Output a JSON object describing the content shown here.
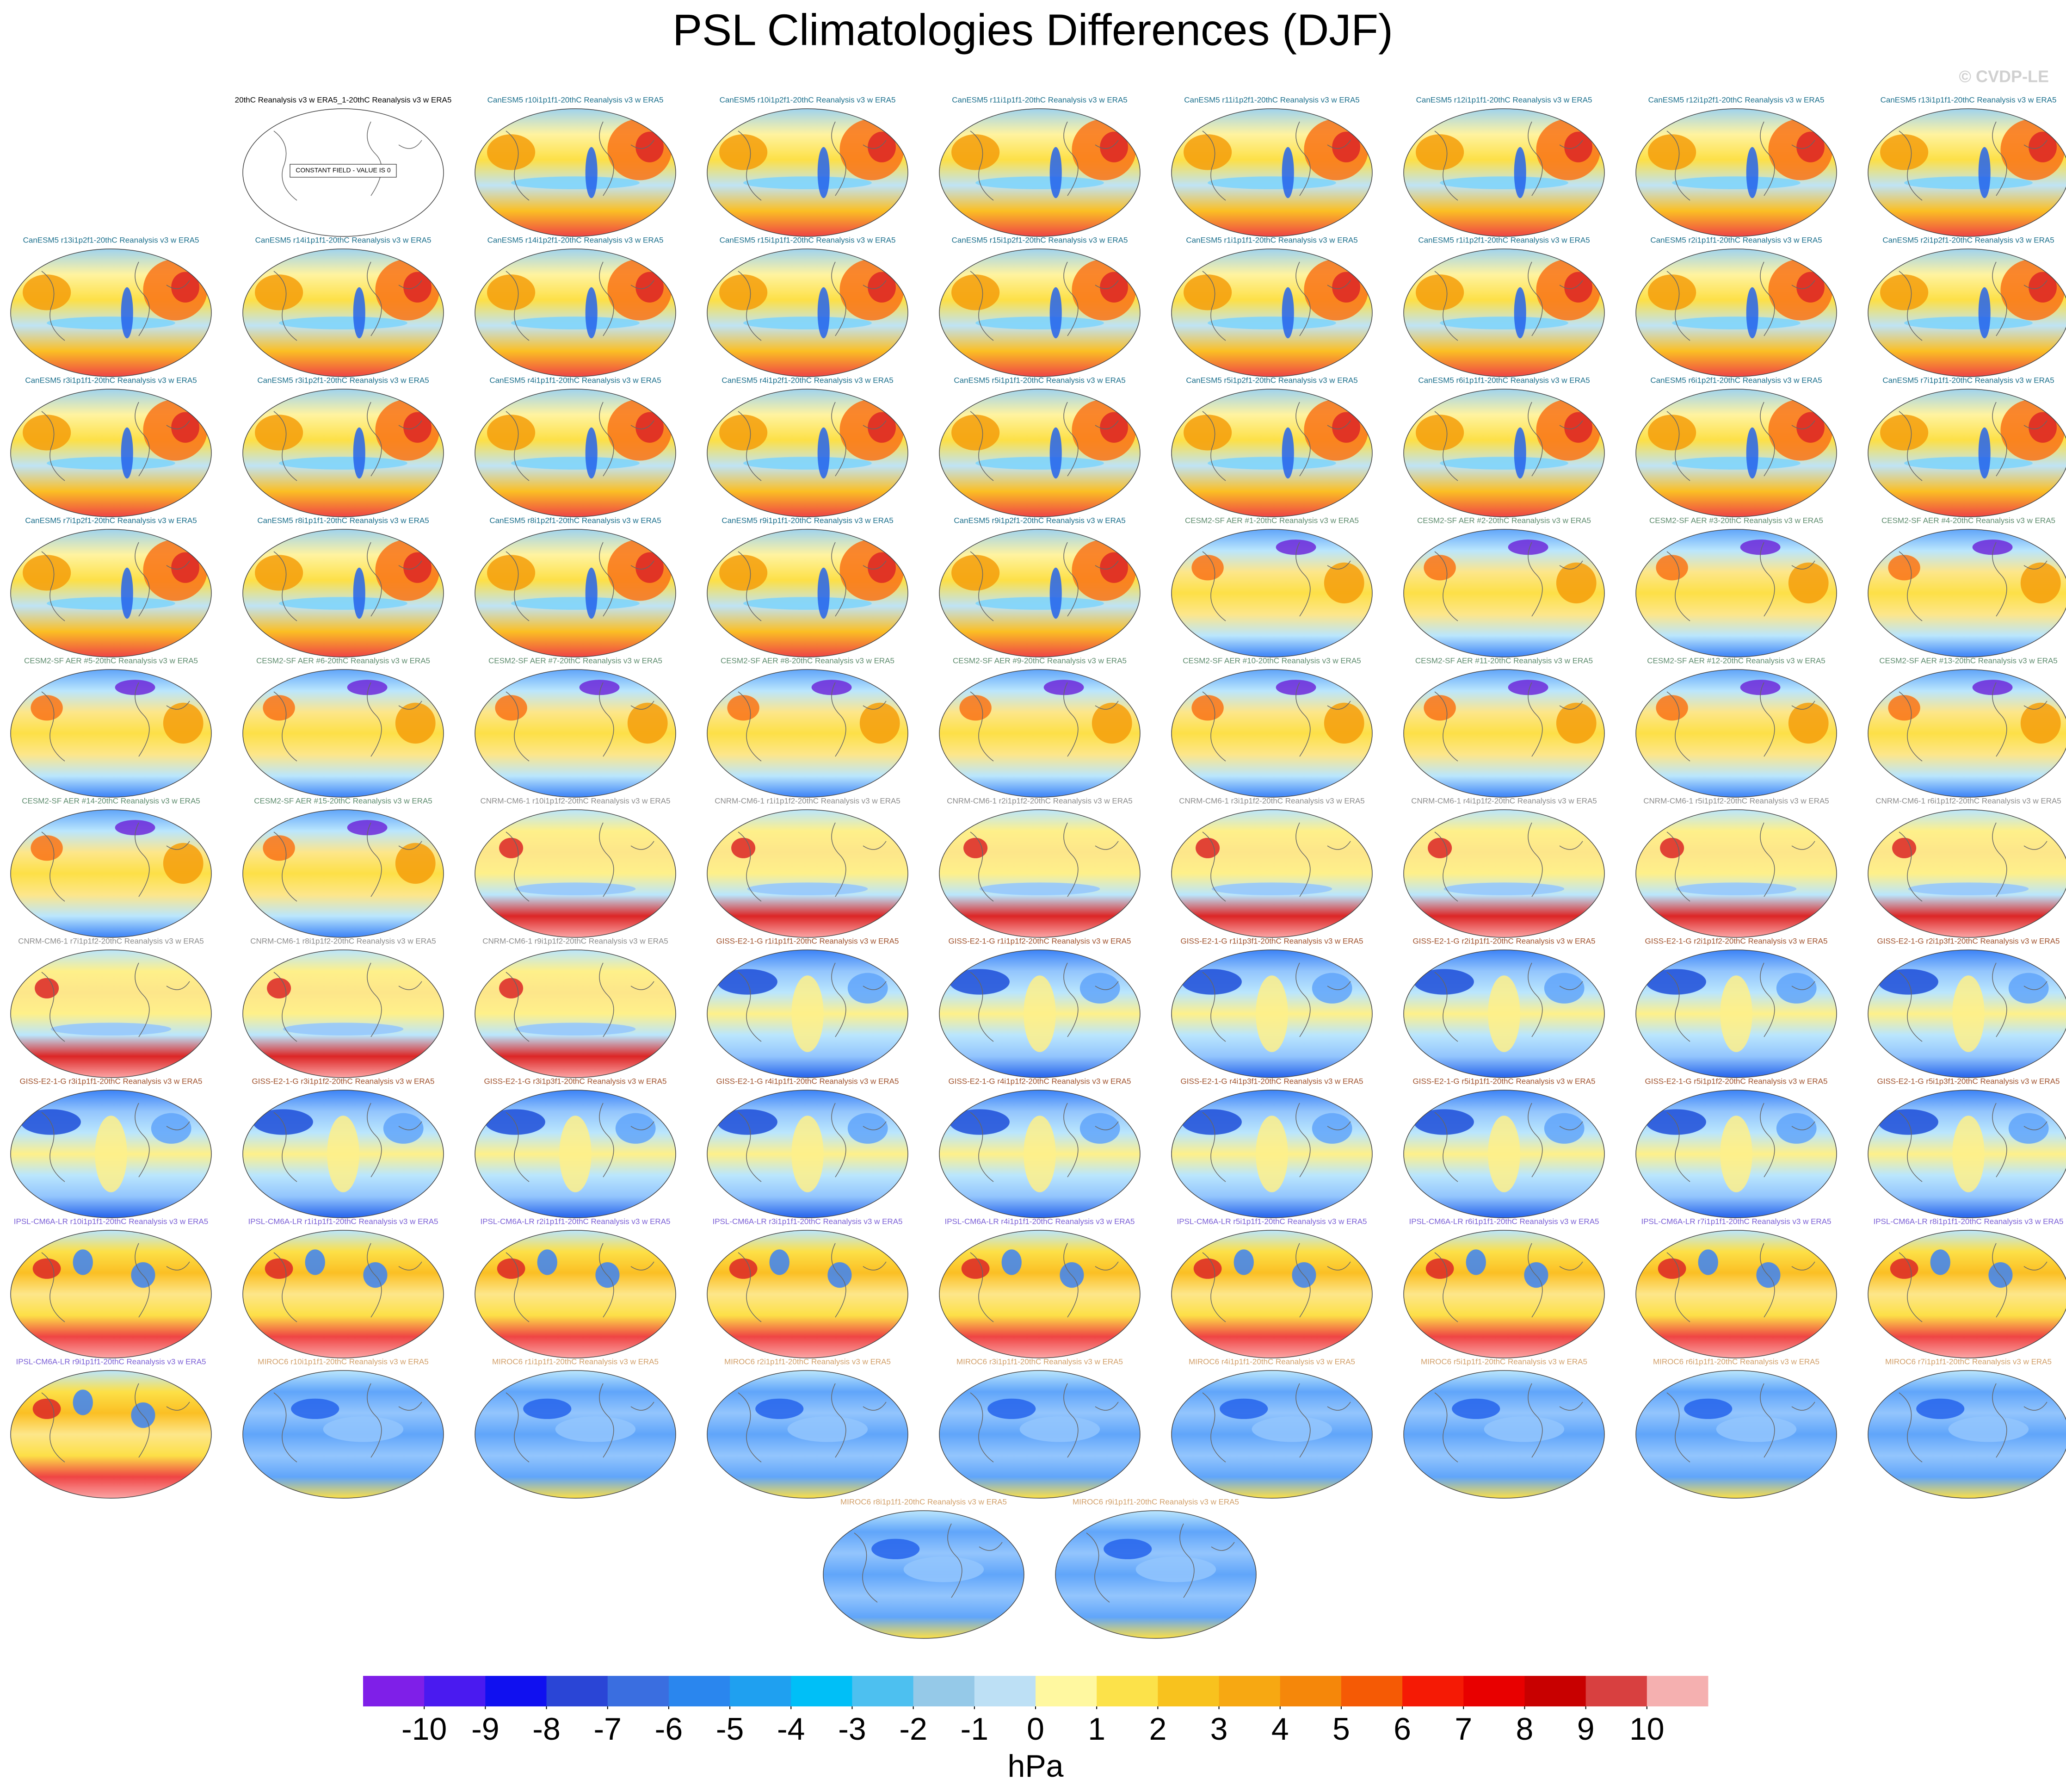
{
  "title": "PSL Climatologies Differences (DJF)",
  "watermark": "© CVDP-LE",
  "panels": [
    {
      "label": "20thC Reanalysis v3 w ERA5_1-20thC Reanalysis v3 w ERA5",
      "color": "#000000",
      "note": "CONSTANT FIELD - VALUE IS 0"
    },
    {
      "label": "CanESM5 r10i1p1f1-20thC Reanalysis v3 w ERA5",
      "color": "#1b6f8c"
    },
    {
      "label": "CanESM5 r10i1p2f1-20thC Reanalysis v3 w ERA5",
      "color": "#1b6f8c"
    },
    {
      "label": "CanESM5 r11i1p1f1-20thC Reanalysis v3 w ERA5",
      "color": "#1b6f8c"
    },
    {
      "label": "CanESM5 r11i1p2f1-20thC Reanalysis v3 w ERA5",
      "color": "#1b6f8c"
    },
    {
      "label": "CanESM5 r12i1p1f1-20thC Reanalysis v3 w ERA5",
      "color": "#1b6f8c"
    },
    {
      "label": "CanESM5 r12i1p2f1-20thC Reanalysis v3 w ERA5",
      "color": "#1b6f8c"
    },
    {
      "label": "CanESM5 r13i1p1f1-20thC Reanalysis v3 w ERA5",
      "color": "#1b6f8c"
    },
    {
      "label": "CanESM5 r13i1p2f1-20thC Reanalysis v3 w ERA5",
      "color": "#1b6f8c"
    },
    {
      "label": "CanESM5 r14i1p1f1-20thC Reanalysis v3 w ERA5",
      "color": "#1b6f8c"
    },
    {
      "label": "CanESM5 r14i1p2f1-20thC Reanalysis v3 w ERA5",
      "color": "#1b6f8c"
    },
    {
      "label": "CanESM5 r15i1p1f1-20thC Reanalysis v3 w ERA5",
      "color": "#1b6f8c"
    },
    {
      "label": "CanESM5 r15i1p2f1-20thC Reanalysis v3 w ERA5",
      "color": "#1b6f8c"
    },
    {
      "label": "CanESM5 r1i1p1f1-20thC Reanalysis v3 w ERA5",
      "color": "#1b6f8c"
    },
    {
      "label": "CanESM5 r1i1p2f1-20thC Reanalysis v3 w ERA5",
      "color": "#1b6f8c"
    },
    {
      "label": "CanESM5 r2i1p1f1-20thC Reanalysis v3 w ERA5",
      "color": "#1b6f8c"
    },
    {
      "label": "CanESM5 r2i1p2f1-20thC Reanalysis v3 w ERA5",
      "color": "#1b6f8c"
    },
    {
      "label": "CanESM5 r3i1p1f1-20thC Reanalysis v3 w ERA5",
      "color": "#1b6f8c"
    },
    {
      "label": "CanESM5 r3i1p2f1-20thC Reanalysis v3 w ERA5",
      "color": "#1b6f8c"
    },
    {
      "label": "CanESM5 r4i1p1f1-20thC Reanalysis v3 w ERA5",
      "color": "#1b6f8c"
    },
    {
      "label": "CanESM5 r4i1p2f1-20thC Reanalysis v3 w ERA5",
      "color": "#1b6f8c"
    },
    {
      "label": "CanESM5 r5i1p1f1-20thC Reanalysis v3 w ERA5",
      "color": "#1b6f8c"
    },
    {
      "label": "CanESM5 r5i1p2f1-20thC Reanalysis v3 w ERA5",
      "color": "#1b6f8c"
    },
    {
      "label": "CanESM5 r6i1p1f1-20thC Reanalysis v3 w ERA5",
      "color": "#1b6f8c"
    },
    {
      "label": "CanESM5 r6i1p2f1-20thC Reanalysis v3 w ERA5",
      "color": "#1b6f8c"
    },
    {
      "label": "CanESM5 r7i1p1f1-20thC Reanalysis v3 w ERA5",
      "color": "#1b6f8c"
    },
    {
      "label": "CanESM5 r7i1p2f1-20thC Reanalysis v3 w ERA5",
      "color": "#1b6f8c"
    },
    {
      "label": "CanESM5 r8i1p1f1-20thC Reanalysis v3 w ERA5",
      "color": "#1b6f8c"
    },
    {
      "label": "CanESM5 r8i1p2f1-20thC Reanalysis v3 w ERA5",
      "color": "#1b6f8c"
    },
    {
      "label": "CanESM5 r9i1p1f1-20thC Reanalysis v3 w ERA5",
      "color": "#1b6f8c"
    },
    {
      "label": "CanESM5 r9i1p2f1-20thC Reanalysis v3 w ERA5",
      "color": "#1b6f8c"
    },
    {
      "label": "CESM2-SF AER #1-20thC Reanalysis v3 w ERA5",
      "color": "#5e8c6e"
    },
    {
      "label": "CESM2-SF AER #2-20thC Reanalysis v3 w ERA5",
      "color": "#5e8c6e"
    },
    {
      "label": "CESM2-SF AER #3-20thC Reanalysis v3 w ERA5",
      "color": "#5e8c6e"
    },
    {
      "label": "CESM2-SF AER #4-20thC Reanalysis v3 w ERA5",
      "color": "#5e8c6e"
    },
    {
      "label": "CESM2-SF AER #5-20thC Reanalysis v3 w ERA5",
      "color": "#5e8c6e"
    },
    {
      "label": "CESM2-SF AER #6-20thC Reanalysis v3 w ERA5",
      "color": "#5e8c6e"
    },
    {
      "label": "CESM2-SF AER #7-20thC Reanalysis v3 w ERA5",
      "color": "#5e8c6e"
    },
    {
      "label": "CESM2-SF AER #8-20thC Reanalysis v3 w ERA5",
      "color": "#5e8c6e"
    },
    {
      "label": "CESM2-SF AER #9-20thC Reanalysis v3 w ERA5",
      "color": "#5e8c6e"
    },
    {
      "label": "CESM2-SF AER #10-20thC Reanalysis v3 w ERA5",
      "color": "#5e8c6e"
    },
    {
      "label": "CESM2-SF AER #11-20thC Reanalysis v3 w ERA5",
      "color": "#5e8c6e"
    },
    {
      "label": "CESM2-SF AER #12-20thC Reanalysis v3 w ERA5",
      "color": "#5e8c6e"
    },
    {
      "label": "CESM2-SF AER #13-20thC Reanalysis v3 w ERA5",
      "color": "#5e8c6e"
    },
    {
      "label": "CESM2-SF AER #14-20thC Reanalysis v3 w ERA5",
      "color": "#5e8c6e"
    },
    {
      "label": "CESM2-SF AER #15-20thC Reanalysis v3 w ERA5",
      "color": "#5e8c6e"
    },
    {
      "label": "CNRM-CM6-1 r10i1p1f2-20thC Reanalysis v3 w ERA5",
      "color": "#8c8c8c"
    },
    {
      "label": "CNRM-CM6-1 r1i1p1f2-20thC Reanalysis v3 w ERA5",
      "color": "#8c8c8c"
    },
    {
      "label": "CNRM-CM6-1 r2i1p1f2-20thC Reanalysis v3 w ERA5",
      "color": "#8c8c8c"
    },
    {
      "label": "CNRM-CM6-1 r3i1p1f2-20thC Reanalysis v3 w ERA5",
      "color": "#8c8c8c"
    },
    {
      "label": "CNRM-CM6-1 r4i1p1f2-20thC Reanalysis v3 w ERA5",
      "color": "#8c8c8c"
    },
    {
      "label": "CNRM-CM6-1 r5i1p1f2-20thC Reanalysis v3 w ERA5",
      "color": "#8c8c8c"
    },
    {
      "label": "CNRM-CM6-1 r6i1p1f2-20thC Reanalysis v3 w ERA5",
      "color": "#8c8c8c"
    },
    {
      "label": "CNRM-CM6-1 r7i1p1f2-20thC Reanalysis v3 w ERA5",
      "color": "#8c8c8c"
    },
    {
      "label": "CNRM-CM6-1 r8i1p1f2-20thC Reanalysis v3 w ERA5",
      "color": "#8c8c8c"
    },
    {
      "label": "CNRM-CM6-1 r9i1p1f2-20thC Reanalysis v3 w ERA5",
      "color": "#8c8c8c"
    },
    {
      "label": "GISS-E2-1-G r1i1p1f1-20thC Reanalysis v3 w ERA5",
      "color": "#a0522d"
    },
    {
      "label": "GISS-E2-1-G r1i1p1f2-20thC Reanalysis v3 w ERA5",
      "color": "#a0522d"
    },
    {
      "label": "GISS-E2-1-G r1i1p3f1-20thC Reanalysis v3 w ERA5",
      "color": "#a0522d"
    },
    {
      "label": "GISS-E2-1-G r2i1p1f1-20thC Reanalysis v3 w ERA5",
      "color": "#a0522d"
    },
    {
      "label": "GISS-E2-1-G r2i1p1f2-20thC Reanalysis v3 w ERA5",
      "color": "#a0522d"
    },
    {
      "label": "GISS-E2-1-G r2i1p3f1-20thC Reanalysis v3 w ERA5",
      "color": "#a0522d"
    },
    {
      "label": "GISS-E2-1-G r3i1p1f1-20thC Reanalysis v3 w ERA5",
      "color": "#a0522d"
    },
    {
      "label": "GISS-E2-1-G r3i1p1f2-20thC Reanalysis v3 w ERA5",
      "color": "#a0522d"
    },
    {
      "label": "GISS-E2-1-G r3i1p3f1-20thC Reanalysis v3 w ERA5",
      "color": "#a0522d"
    },
    {
      "label": "GISS-E2-1-G r4i1p1f1-20thC Reanalysis v3 w ERA5",
      "color": "#a0522d"
    },
    {
      "label": "GISS-E2-1-G r4i1p1f2-20thC Reanalysis v3 w ERA5",
      "color": "#a0522d"
    },
    {
      "label": "GISS-E2-1-G r4i1p3f1-20thC Reanalysis v3 w ERA5",
      "color": "#a0522d"
    },
    {
      "label": "GISS-E2-1-G r5i1p1f1-20thC Reanalysis v3 w ERA5",
      "color": "#a0522d"
    },
    {
      "label": "GISS-E2-1-G r5i1p1f2-20thC Reanalysis v3 w ERA5",
      "color": "#a0522d"
    },
    {
      "label": "GISS-E2-1-G r5i1p3f1-20thC Reanalysis v3 w ERA5",
      "color": "#a0522d"
    },
    {
      "label": "IPSL-CM6A-LR r10i1p1f1-20thC Reanalysis v3 w ERA5",
      "color": "#7b5fd6"
    },
    {
      "label": "IPSL-CM6A-LR r1i1p1f1-20thC Reanalysis v3 w ERA5",
      "color": "#7b5fd6"
    },
    {
      "label": "IPSL-CM6A-LR r2i1p1f1-20thC Reanalysis v3 w ERA5",
      "color": "#7b5fd6"
    },
    {
      "label": "IPSL-CM6A-LR r3i1p1f1-20thC Reanalysis v3 w ERA5",
      "color": "#7b5fd6"
    },
    {
      "label": "IPSL-CM6A-LR r4i1p1f1-20thC Reanalysis v3 w ERA5",
      "color": "#7b5fd6"
    },
    {
      "label": "IPSL-CM6A-LR r5i1p1f1-20thC Reanalysis v3 w ERA5",
      "color": "#7b5fd6"
    },
    {
      "label": "IPSL-CM6A-LR r6i1p1f1-20thC Reanalysis v3 w ERA5",
      "color": "#7b5fd6"
    },
    {
      "label": "IPSL-CM6A-LR r7i1p1f1-20thC Reanalysis v3 w ERA5",
      "color": "#7b5fd6"
    },
    {
      "label": "IPSL-CM6A-LR r8i1p1f1-20thC Reanalysis v3 w ERA5",
      "color": "#7b5fd6"
    },
    {
      "label": "IPSL-CM6A-LR r9i1p1f1-20thC Reanalysis v3 w ERA5",
      "color": "#7b5fd6"
    },
    {
      "label": "MIROC6 r10i1p1f1-20thC Reanalysis v3 w ERA5",
      "color": "#d2a06a"
    },
    {
      "label": "MIROC6 r1i1p1f1-20thC Reanalysis v3 w ERA5",
      "color": "#d2a06a"
    },
    {
      "label": "MIROC6 r2i1p1f1-20thC Reanalysis v3 w ERA5",
      "color": "#d2a06a"
    },
    {
      "label": "MIROC6 r3i1p1f1-20thC Reanalysis v3 w ERA5",
      "color": "#d2a06a"
    },
    {
      "label": "MIROC6 r4i1p1f1-20thC Reanalysis v3 w ERA5",
      "color": "#d2a06a"
    },
    {
      "label": "MIROC6 r5i1p1f1-20thC Reanalysis v3 w ERA5",
      "color": "#d2a06a"
    },
    {
      "label": "MIROC6 r6i1p1f1-20thC Reanalysis v3 w ERA5",
      "color": "#d2a06a"
    },
    {
      "label": "MIROC6 r7i1p1f1-20thC Reanalysis v3 w ERA5",
      "color": "#d2a06a"
    },
    {
      "label": "MIROC6 r8i1p1f1-20thC Reanalysis v3 w ERA5",
      "color": "#d2a06a"
    },
    {
      "label": "MIROC6 r9i1p1f1-20thC Reanalysis v3 w ERA5",
      "color": "#d2a06a"
    }
  ],
  "colorbar": {
    "label": "hPa",
    "colors": [
      "#7f1fe8",
      "#4a1af0",
      "#1010f0",
      "#2a45d6",
      "#3a6ee0",
      "#2a86ee",
      "#1fa0f0",
      "#00bff7",
      "#4dc0f0",
      "#95c9e8",
      "#bde0f5",
      "#fff8a0",
      "#fce24a",
      "#f8c21e",
      "#f7a812",
      "#f5870a",
      "#f55a05",
      "#f51a05",
      "#e80000",
      "#c80000",
      "#d84040",
      "#f5b0b0"
    ],
    "ticks": [
      -10,
      -9,
      -8,
      -7,
      -6,
      -5,
      -4,
      -3,
      -2,
      -1,
      0,
      1,
      2,
      3,
      4,
      5,
      6,
      7,
      8,
      9,
      10
    ]
  }
}
